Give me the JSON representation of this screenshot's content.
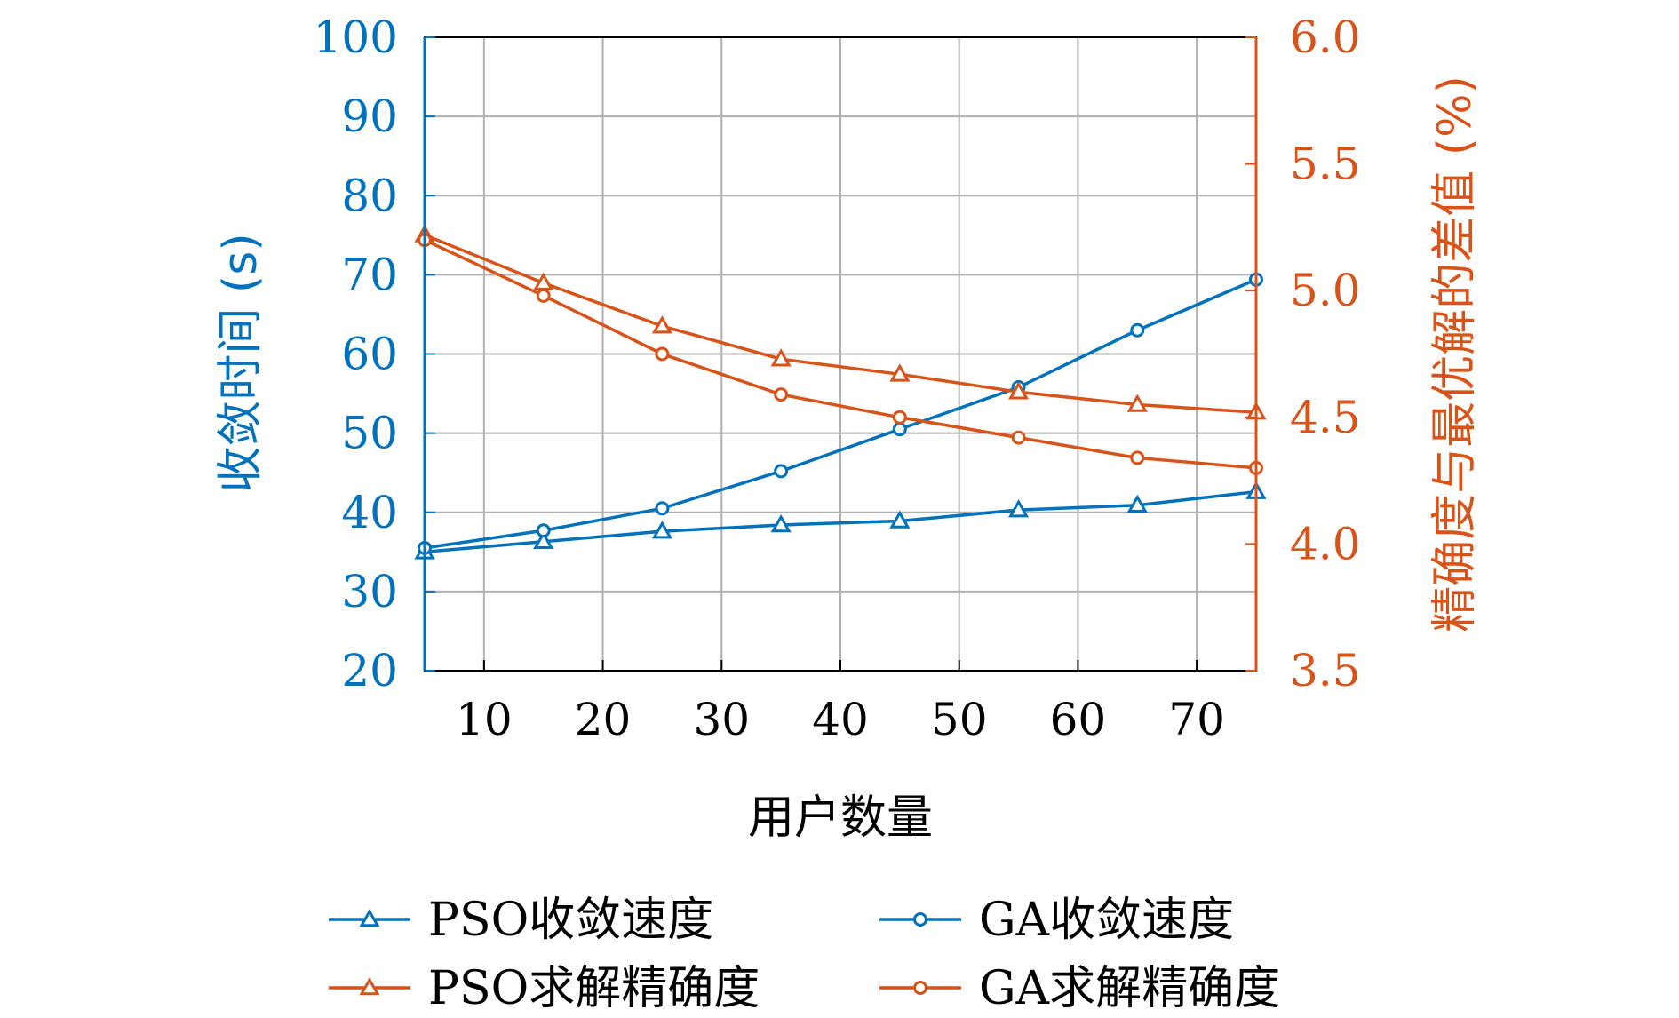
{
  "chart_data": {
    "type": "line",
    "xlabel": "用户数量",
    "ylabel_left": "收敛时间 (s)",
    "ylabel_right": "精确度与最优解的差值 (%)",
    "x": [
      5,
      15,
      25,
      35,
      45,
      55,
      65,
      75
    ],
    "xlim": [
      5,
      75
    ],
    "xticks": [
      10,
      20,
      30,
      40,
      50,
      60,
      70
    ],
    "ylim_left": [
      20,
      100
    ],
    "yticks_left": [
      20,
      30,
      40,
      50,
      60,
      70,
      80,
      90,
      100
    ],
    "ylim_right": [
      3.5,
      6.0
    ],
    "yticks_right": [
      "3.5",
      "4.0",
      "4.5",
      "5.0",
      "5.5",
      "6.0"
    ],
    "grid": true,
    "colors": {
      "left": "#0072bd",
      "right": "#d95319"
    },
    "series": [
      {
        "name": "PSO收敛速度",
        "axis": "left",
        "marker": "triangle",
        "color": "#0072bd",
        "values": [
          35.0,
          36.3,
          37.6,
          38.4,
          38.9,
          40.3,
          40.9,
          42.6
        ]
      },
      {
        "name": "GA收敛速度",
        "axis": "left",
        "marker": "circle",
        "color": "#0072bd",
        "values": [
          35.5,
          37.7,
          40.5,
          45.2,
          50.5,
          55.8,
          63.0,
          69.4
        ]
      },
      {
        "name": "PSO求解精确度",
        "axis": "right",
        "marker": "triangle",
        "color": "#d95319",
        "values": [
          5.22,
          5.03,
          4.86,
          4.73,
          4.67,
          4.6,
          4.55,
          4.52
        ]
      },
      {
        "name": "GA求解精确度",
        "axis": "right",
        "marker": "circle",
        "color": "#d95319",
        "values": [
          5.2,
          4.98,
          4.75,
          4.59,
          4.5,
          4.42,
          4.34,
          4.3
        ]
      }
    ],
    "legend": {
      "placement": "bottom",
      "columns": 2
    }
  }
}
